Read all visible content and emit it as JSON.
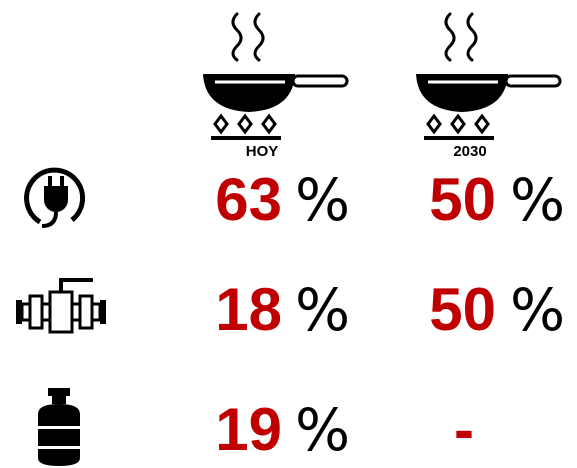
{
  "columns": [
    "HOY",
    "2030"
  ],
  "unit": "%",
  "rows": [
    {
      "values": [
        63,
        50
      ]
    },
    {
      "values": [
        18,
        50
      ]
    },
    {
      "values": [
        19,
        "-"
      ]
    }
  ]
}
